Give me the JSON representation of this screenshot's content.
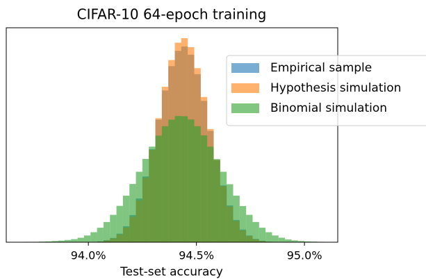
{
  "chart_data": {
    "type": "histogram",
    "title": "CIFAR-10 64-epoch training",
    "xlabel": "Test-set accuracy",
    "xlim": [
      93.62,
      95.154
    ],
    "ylim": [
      0,
      1050
    ],
    "xticks": [
      {
        "value": 94.0,
        "label": "94.0%"
      },
      {
        "value": 94.5,
        "label": "94.5%"
      },
      {
        "value": 95.0,
        "label": "95.0%"
      }
    ],
    "legend": "upper right",
    "alpha": 0.6,
    "bins": [
      93.62,
      93.65,
      93.68,
      93.71,
      93.74,
      93.77,
      93.8,
      93.83,
      93.86,
      93.89,
      93.92,
      93.95,
      93.98,
      94.01,
      94.04,
      94.07,
      94.1,
      94.13,
      94.16,
      94.19,
      94.22,
      94.25,
      94.28,
      94.31,
      94.34,
      94.37,
      94.4,
      94.43,
      94.46,
      94.49,
      94.52,
      94.55,
      94.58,
      94.61,
      94.64,
      94.67,
      94.7,
      94.73,
      94.76,
      94.79,
      94.82,
      94.85,
      94.88,
      94.91,
      94.94,
      94.97,
      95.0,
      95.03,
      95.06,
      95.09,
      95.12,
      95.15
    ],
    "series": [
      {
        "name": "Empirical sample",
        "color": "#1f77b4",
        "values": [
          0,
          0,
          0,
          0,
          0,
          0,
          0,
          0,
          0,
          0,
          0,
          0,
          0,
          1,
          4,
          10,
          21,
          42,
          78,
          133,
          214,
          322,
          455,
          600,
          743,
          862,
          937,
          958,
          918,
          823,
          692,
          545,
          402,
          278,
          180,
          109,
          62,
          33,
          16,
          7,
          3,
          1,
          0,
          0,
          0,
          0,
          0,
          0,
          0,
          0,
          0
        ]
      },
      {
        "name": "Hypothesis simulation",
        "color": "#ff7f0e",
        "values": [
          0,
          0,
          0,
          0,
          0,
          0,
          0,
          0,
          0,
          0,
          0,
          0,
          0,
          1,
          3,
          8,
          18,
          37,
          71,
          124,
          204,
          314,
          452,
          607,
          761,
          892,
          977,
          999,
          955,
          852,
          711,
          554,
          403,
          274,
          174,
          103,
          57,
          30,
          14,
          6,
          3,
          1,
          0,
          0,
          0,
          0,
          0,
          0,
          0,
          0,
          0
        ]
      },
      {
        "name": "Binomial simulation",
        "color": "#2ca02c",
        "values": [
          1,
          1,
          1,
          2,
          2,
          3,
          4,
          6,
          8,
          11,
          15,
          22,
          33,
          49,
          71,
          99,
          134,
          178,
          228,
          285,
          345,
          408,
          468,
          522,
          568,
          600,
          618,
          617,
          601,
          568,
          523,
          468,
          407,
          345,
          284,
          228,
          177,
          134,
          99,
          71,
          49,
          33,
          22,
          14,
          9,
          6,
          4,
          3,
          2,
          1,
          1
        ]
      }
    ]
  }
}
